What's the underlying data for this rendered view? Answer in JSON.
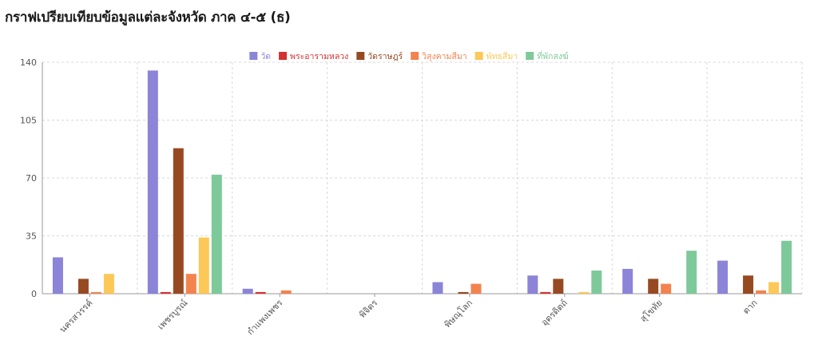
{
  "page_title": "กราฟเปรียบเทียบข้อมูลแต่ละจังหวัด ภาค ๔-๕ (ธ)",
  "chart_data": {
    "type": "bar",
    "categories": [
      "นครสวรรค์",
      "เพชรบูรณ์",
      "กำแพงเพชร",
      "พิจิตร",
      "พิษณุโลก",
      "อุตรดิตถ์",
      "สุโขทัย",
      "ตาก"
    ],
    "series": [
      {
        "name": "วัด",
        "color": "#8b84d7",
        "values": [
          22,
          135,
          3,
          0,
          7,
          11,
          15,
          20
        ]
      },
      {
        "name": "พระอารามหลวง",
        "color": "#d63030",
        "values": [
          0,
          1,
          1,
          0,
          0,
          1,
          0,
          0
        ]
      },
      {
        "name": "วัดราษฎร์",
        "color": "#974a22",
        "values": [
          9,
          88,
          0,
          0,
          1,
          9,
          9,
          11
        ]
      },
      {
        "name": "วิสุงคามสีมา",
        "color": "#f2834f",
        "values": [
          1,
          12,
          2,
          0,
          6,
          0,
          6,
          2
        ]
      },
      {
        "name": "พัทธสีมา",
        "color": "#fcc858",
        "values": [
          12,
          34,
          0,
          0,
          0,
          1,
          0,
          7
        ]
      },
      {
        "name": "ที่พักสงฆ์",
        "color": "#7ec99a",
        "values": [
          0,
          72,
          0,
          0,
          0,
          14,
          26,
          32
        ]
      }
    ],
    "ylim": [
      0,
      140
    ],
    "yticks": [
      0,
      35,
      70,
      105,
      140
    ],
    "grid": true,
    "legend_position": "top-center",
    "xlabel": "",
    "ylabel": ""
  }
}
